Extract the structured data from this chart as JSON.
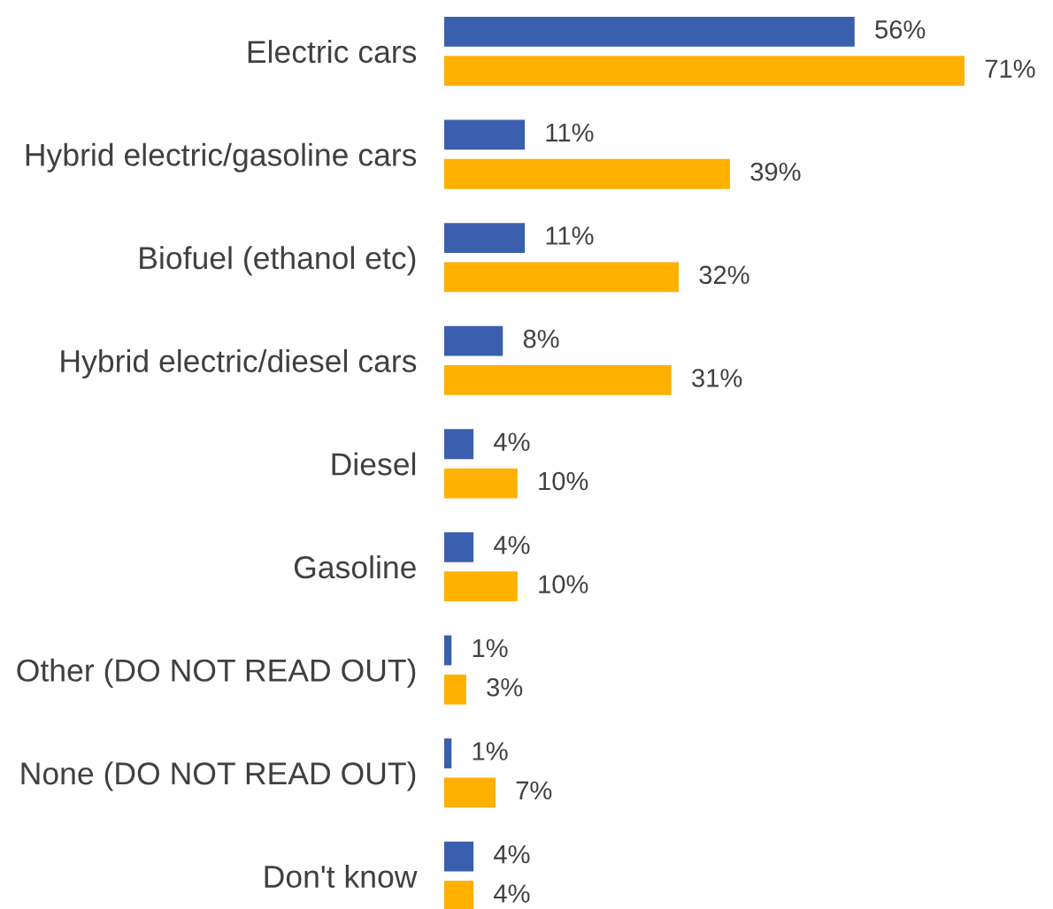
{
  "chart_data": {
    "type": "bar",
    "orientation": "horizontal",
    "categories": [
      "Electric cars",
      "Hybrid electric/gasoline cars",
      "Biofuel (ethanol etc)",
      "Hybrid electric/diesel cars",
      "Diesel",
      "Gasoline",
      "Other (DO NOT READ OUT)",
      "None (DO NOT READ OUT)",
      "Don't know"
    ],
    "series": [
      {
        "color": "#3a5fad",
        "values": [
          56,
          11,
          11,
          8,
          4,
          4,
          1,
          1,
          4
        ],
        "value_labels": [
          "56%",
          "11%",
          "11%",
          "8%",
          "4%",
          "4%",
          "1%",
          "1%",
          "4%"
        ]
      },
      {
        "color": "#ffb000",
        "values": [
          71,
          39,
          32,
          31,
          10,
          10,
          3,
          7,
          4
        ],
        "value_labels": [
          "71%",
          "39%",
          "32%",
          "31%",
          "10%",
          "10%",
          "3%",
          "7%",
          "4%"
        ]
      }
    ]
  }
}
